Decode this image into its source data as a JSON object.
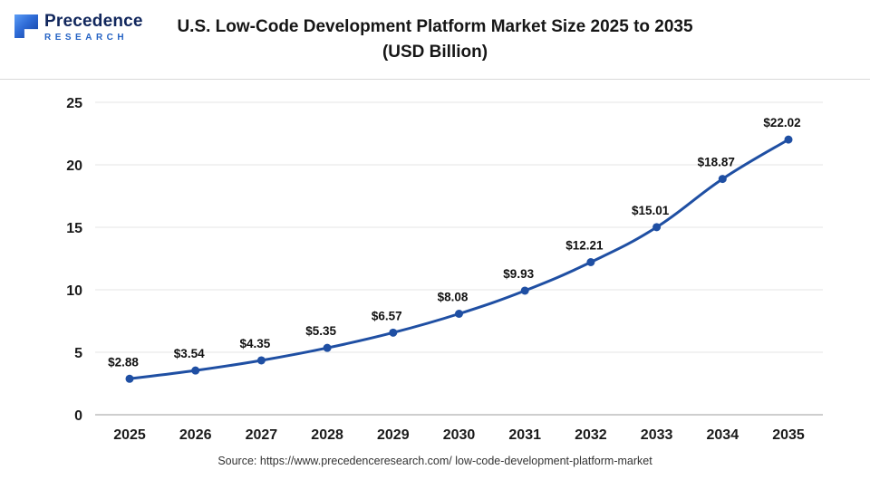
{
  "logo": {
    "name": "Precedence",
    "subtitle": "RESEARCH"
  },
  "title": {
    "line1": "U.S. Low-Code Development Platform Market Size 2025 to 2035",
    "line2": "(USD Billion)"
  },
  "source": "Source: https://www.precedenceresearch.com/ low-code-development-platform-market",
  "colors": {
    "line": "#1f4fa3",
    "point": "#1f4fa3",
    "grid": "#e4e4e4",
    "zero_axis": "#9e9e9e",
    "tick_label": "#1a1a1a",
    "data_label": "#111111"
  },
  "chart_data": {
    "type": "line",
    "title": "U.S. Low-Code Development Platform Market Size 2025 to 2035 (USD Billion)",
    "categories": [
      "2025",
      "2026",
      "2027",
      "2028",
      "2029",
      "2030",
      "2031",
      "2032",
      "2033",
      "2034",
      "2035"
    ],
    "values": [
      2.88,
      3.54,
      4.35,
      5.35,
      6.57,
      8.08,
      9.93,
      12.21,
      15.01,
      18.87,
      22.02
    ],
    "labels": [
      "$2.88",
      "$3.54",
      "$4.35",
      "$5.35",
      "$6.57",
      "$8.08",
      "$9.93",
      "$12.21",
      "$15.01",
      "$18.87",
      "$22.02"
    ],
    "xlabel": "",
    "ylabel": "",
    "ylim": [
      0,
      25
    ],
    "yticks": [
      0,
      5,
      10,
      15,
      20,
      25
    ],
    "grid": true,
    "legend": "none"
  }
}
